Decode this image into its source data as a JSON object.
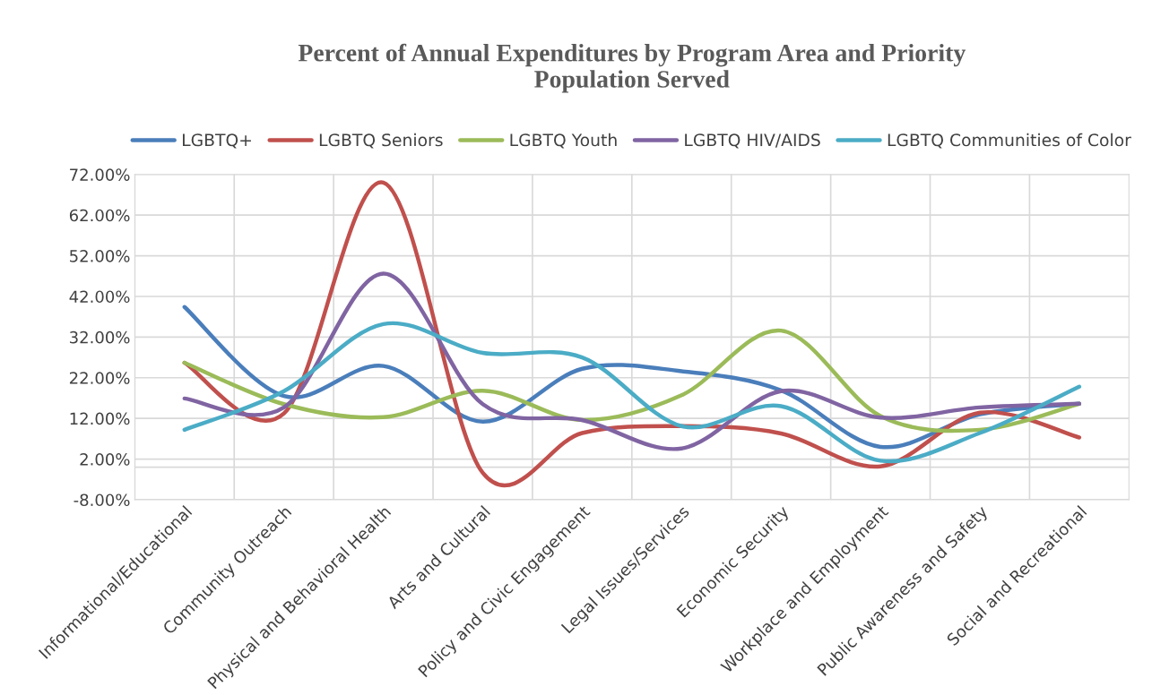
{
  "chart_data": {
    "type": "line",
    "title": "Percent of Annual Expenditures by Program Area and Priority\nPopulation Served",
    "categories": [
      "Informational/Educational",
      "Community Outreach",
      "Physical and Behavioral Health",
      "Arts and Cultural",
      "Policy and Civic Engagement",
      "Legal Issues/Services",
      "Economic Security",
      "Workplace and Employment",
      "Public Awareness and Safety",
      "Social and Recreational"
    ],
    "series": [
      {
        "name": "LGBTQ+",
        "color": "#4a7ebb",
        "values": [
          39.4,
          17.5,
          24.9,
          11.2,
          24.2,
          23.6,
          18.9,
          5.0,
          13.0,
          15.6
        ]
      },
      {
        "name": "LGBTQ Seniors",
        "color": "#c0504d",
        "values": [
          25.7,
          13.2,
          70.0,
          -1.4,
          8.4,
          10.1,
          8.3,
          0.2,
          13.4,
          7.3
        ]
      },
      {
        "name": "LGBTQ Youth",
        "color": "#9bbb59",
        "values": [
          25.7,
          15.5,
          12.3,
          18.8,
          11.6,
          17.7,
          33.6,
          12.6,
          9.2,
          15.6
        ]
      },
      {
        "name": "LGBTQ HIV/AIDS",
        "color": "#8064a2",
        "values": [
          16.9,
          14.7,
          47.6,
          15.5,
          11.6,
          4.6,
          18.7,
          12.2,
          14.7,
          15.6
        ]
      },
      {
        "name": "LGBTQ Communities of Color",
        "color": "#4bacc6",
        "values": [
          9.2,
          18.7,
          35.2,
          28.1,
          27.0,
          10.1,
          15.0,
          1.6,
          8.4,
          19.8
        ]
      }
    ],
    "ylim": [
      -8,
      72
    ],
    "yticks": [
      {
        "value": -8,
        "label": "-8.00%"
      },
      {
        "value": 2,
        "label": "2.00%"
      },
      {
        "value": 12,
        "label": "12.00%"
      },
      {
        "value": 22,
        "label": "22.00%"
      },
      {
        "value": 32,
        "label": "32.00%"
      },
      {
        "value": 42,
        "label": "42.00%"
      },
      {
        "value": 52,
        "label": "52.00%"
      },
      {
        "value": 62,
        "label": "62.00%"
      },
      {
        "value": 72,
        "label": "72.00%"
      }
    ],
    "ref_lines": [
      {
        "axis": "y",
        "value": 0,
        "color": "#d9d9d9"
      }
    ],
    "grid": true,
    "legend": "top",
    "marker": "none",
    "line_style": "solid"
  }
}
